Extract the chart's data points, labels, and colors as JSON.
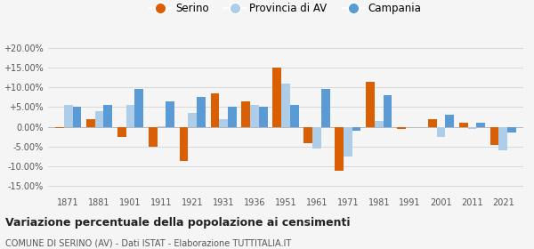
{
  "years": [
    1871,
    1881,
    1901,
    1911,
    1921,
    1931,
    1936,
    1951,
    1961,
    1971,
    1981,
    1991,
    2001,
    2011,
    2021
  ],
  "serino": [
    -0.3,
    2.0,
    -2.5,
    -5.0,
    -8.5,
    8.5,
    6.5,
    15.0,
    -4.0,
    -11.0,
    11.5,
    -0.5,
    2.0,
    1.0,
    -4.5
  ],
  "provincia_av": [
    5.5,
    4.0,
    5.5,
    0.2,
    3.5,
    2.0,
    5.5,
    11.0,
    -5.5,
    -7.5,
    1.5,
    0.0,
    -2.5,
    -0.5,
    -6.0
  ],
  "campania": [
    5.0,
    5.5,
    9.5,
    6.5,
    7.5,
    5.0,
    5.0,
    5.5,
    9.5,
    -1.0,
    8.0,
    0.0,
    3.0,
    1.0,
    -1.5
  ],
  "serino_color": "#d95f02",
  "provincia_color": "#aecde8",
  "campania_color": "#5b9bd5",
  "bg_color": "#f5f5f5",
  "title": "Variazione percentuale della popolazione ai censimenti",
  "subtitle": "COMUNE DI SERINO (AV) - Dati ISTAT - Elaborazione TUTTITALIA.IT",
  "ylim": [
    -17,
    22
  ],
  "yticks": [
    -15,
    -10,
    -5,
    0,
    5,
    10,
    15,
    20
  ],
  "ytick_labels": [
    "-15.00%",
    "-10.00%",
    "-5.00%",
    "0.00%",
    "+5.00%",
    "+10.00%",
    "+15.00%",
    "+20.00%"
  ],
  "legend_labels": [
    "Serino",
    "Provincia di AV",
    "Campania"
  ],
  "bar_width": 0.28,
  "fig_width": 6.0,
  "fig_height": 2.8,
  "dpi": 100
}
